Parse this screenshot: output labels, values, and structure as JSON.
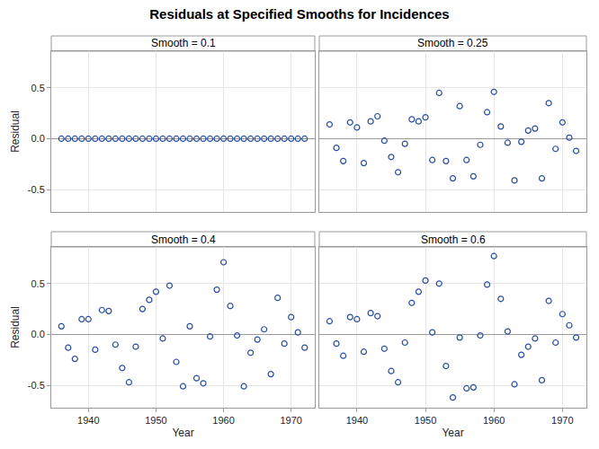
{
  "title": "Residuals at Specified Smooths for Incidences",
  "chart_data": [
    {
      "type": "scatter",
      "title": "Smooth = 0.1",
      "y_label": "Residual",
      "color": "#2a4e9e",
      "marker": "circle-open",
      "grid": true,
      "tick_labels": "y",
      "x": [
        1936,
        1937,
        1938,
        1939,
        1940,
        1941,
        1942,
        1943,
        1944,
        1945,
        1946,
        1947,
        1948,
        1949,
        1950,
        1951,
        1952,
        1953,
        1954,
        1955,
        1956,
        1957,
        1958,
        1959,
        1960,
        1961,
        1962,
        1963,
        1964,
        1965,
        1966,
        1967,
        1968,
        1969,
        1970,
        1971,
        1972
      ],
      "values": [
        0,
        0,
        0,
        0,
        0,
        0,
        0,
        0,
        0,
        0,
        0,
        0,
        0,
        0,
        0,
        0,
        0,
        0,
        0,
        0,
        0,
        0,
        0,
        0,
        0,
        0,
        0,
        0,
        0,
        0,
        0,
        0,
        0,
        0,
        0,
        0,
        0
      ],
      "xlim": [
        1934.5,
        1973.5
      ],
      "ylim": [
        -0.72,
        0.86
      ],
      "xticks": [
        1940,
        1950,
        1960,
        1970
      ],
      "yticks": [
        {
          "value": -0.5,
          "label": "-0.5"
        },
        {
          "value": 0,
          "label": "0.0"
        },
        {
          "value": 0.5,
          "label": "0.5"
        }
      ]
    },
    {
      "type": "scatter",
      "title": "Smooth = 0.25",
      "color": "#2a4e9e",
      "marker": "circle-open",
      "grid": true,
      "tick_labels": false,
      "x": [
        1936,
        1937,
        1938,
        1939,
        1940,
        1941,
        1942,
        1943,
        1944,
        1945,
        1946,
        1947,
        1948,
        1949,
        1950,
        1951,
        1952,
        1953,
        1954,
        1955,
        1956,
        1957,
        1958,
        1959,
        1960,
        1961,
        1962,
        1963,
        1964,
        1965,
        1966,
        1967,
        1968,
        1969,
        1970,
        1971,
        1972
      ],
      "values": [
        0.14,
        -0.09,
        -0.22,
        0.16,
        0.11,
        -0.24,
        0.17,
        0.22,
        -0.02,
        -0.18,
        -0.33,
        -0.05,
        0.19,
        0.17,
        0.21,
        -0.21,
        0.45,
        -0.22,
        -0.39,
        0.32,
        -0.21,
        -0.37,
        -0.06,
        0.26,
        0.46,
        0.12,
        -0.04,
        -0.41,
        -0.03,
        0.08,
        0.1,
        -0.39,
        0.35,
        -0.1,
        0.16,
        0.01,
        -0.12
      ],
      "xlim": [
        1934.5,
        1973.5
      ],
      "ylim": [
        -0.72,
        0.86
      ],
      "xticks": [
        1940,
        1950,
        1960,
        1970
      ],
      "yticks": [
        {
          "value": -0.5,
          "label": "-0.5"
        },
        {
          "value": 0,
          "label": "0.0"
        },
        {
          "value": 0.5,
          "label": "0.5"
        }
      ]
    },
    {
      "type": "scatter",
      "title": "Smooth = 0.4",
      "x_label": "Year",
      "y_label": "Residual",
      "color": "#2a4e9e",
      "marker": "circle-open",
      "grid": true,
      "x": [
        1936,
        1937,
        1938,
        1939,
        1940,
        1941,
        1942,
        1943,
        1944,
        1945,
        1946,
        1947,
        1948,
        1949,
        1950,
        1951,
        1952,
        1953,
        1954,
        1955,
        1956,
        1957,
        1958,
        1959,
        1960,
        1961,
        1962,
        1963,
        1964,
        1965,
        1966,
        1967,
        1968,
        1969,
        1970,
        1971,
        1972
      ],
      "values": [
        0.08,
        -0.13,
        -0.24,
        0.15,
        0.15,
        -0.15,
        0.24,
        0.23,
        -0.1,
        -0.33,
        -0.47,
        -0.12,
        0.25,
        0.34,
        0.42,
        -0.04,
        0.48,
        -0.27,
        -0.51,
        0.08,
        -0.43,
        -0.48,
        -0.02,
        0.44,
        0.71,
        0.28,
        -0.01,
        -0.51,
        -0.18,
        -0.05,
        0.05,
        -0.39,
        0.36,
        -0.09,
        0.17,
        0.02,
        -0.13
      ],
      "xlim": [
        1934.5,
        1973.5
      ],
      "ylim": [
        -0.72,
        0.86
      ],
      "xticks": [
        1940,
        1950,
        1960,
        1970
      ],
      "yticks": [
        {
          "value": -0.5,
          "label": "-0.5"
        },
        {
          "value": 0,
          "label": "0.0"
        },
        {
          "value": 0.5,
          "label": "0.5"
        }
      ]
    },
    {
      "type": "scatter",
      "title": "Smooth = 0.6",
      "x_label": "Year",
      "color": "#2a4e9e",
      "marker": "circle-open",
      "grid": true,
      "tick_labels": "x",
      "x": [
        1936,
        1937,
        1938,
        1939,
        1940,
        1941,
        1942,
        1943,
        1944,
        1945,
        1946,
        1947,
        1948,
        1949,
        1950,
        1951,
        1952,
        1953,
        1954,
        1955,
        1956,
        1957,
        1958,
        1959,
        1960,
        1961,
        1962,
        1963,
        1964,
        1965,
        1966,
        1967,
        1968,
        1969,
        1970,
        1971,
        1972
      ],
      "values": [
        0.13,
        -0.09,
        -0.21,
        0.17,
        0.15,
        -0.17,
        0.21,
        0.18,
        -0.14,
        -0.36,
        -0.47,
        -0.08,
        0.31,
        0.42,
        0.53,
        0.02,
        0.5,
        -0.31,
        -0.62,
        -0.03,
        -0.53,
        -0.52,
        -0.01,
        0.49,
        0.77,
        0.35,
        0.03,
        -0.49,
        -0.2,
        -0.12,
        -0.04,
        -0.45,
        0.33,
        -0.08,
        0.2,
        0.09,
        -0.03
      ],
      "xlim": [
        1934.5,
        1973.5
      ],
      "ylim": [
        -0.72,
        0.86
      ],
      "xticks": [
        1940,
        1950,
        1960,
        1970
      ],
      "yticks": [
        {
          "value": -0.5,
          "label": "-0.5"
        },
        {
          "value": 0,
          "label": "0.0"
        },
        {
          "value": 0.5,
          "label": "0.5"
        }
      ]
    }
  ]
}
